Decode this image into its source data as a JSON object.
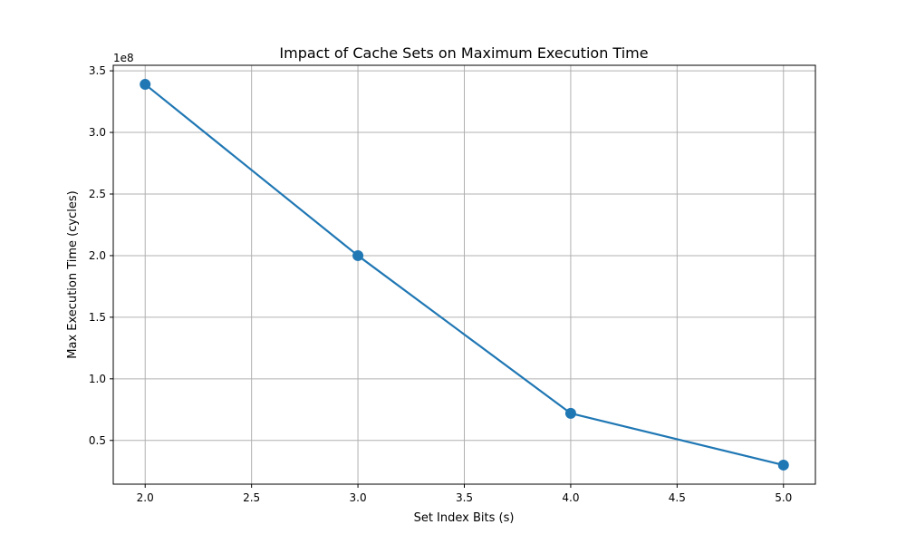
{
  "chart_data": {
    "type": "line",
    "title": "Impact of Cache Sets on Maximum Execution Time",
    "xlabel": "Set Index Bits (s)",
    "ylabel": "Max Execution Time (cycles)",
    "y_offset_label": "1e8",
    "x": [
      2,
      3,
      4,
      5
    ],
    "series": [
      {
        "values": [
          339000000,
          200000000,
          72000000,
          30000000
        ]
      }
    ],
    "xlim": [
      1.85,
      5.15
    ],
    "ylim": [
      14500000,
      354500000
    ],
    "x_ticks": [
      2.0,
      2.5,
      3.0,
      3.5,
      4.0,
      4.5,
      5.0
    ],
    "x_tick_labels": [
      "2.0",
      "2.5",
      "3.0",
      "3.5",
      "4.0",
      "4.5",
      "5.0"
    ],
    "y_ticks": [
      0.5,
      1.0,
      1.5,
      2.0,
      2.5,
      3.0,
      3.5
    ],
    "y_tick_labels": [
      "0.5",
      "1.0",
      "1.5",
      "2.0",
      "2.5",
      "3.0",
      "3.5"
    ],
    "y_tick_scale": 100000000,
    "grid": true,
    "colors": {
      "line": "#1f77b4",
      "marker": "#1f77b4"
    }
  }
}
